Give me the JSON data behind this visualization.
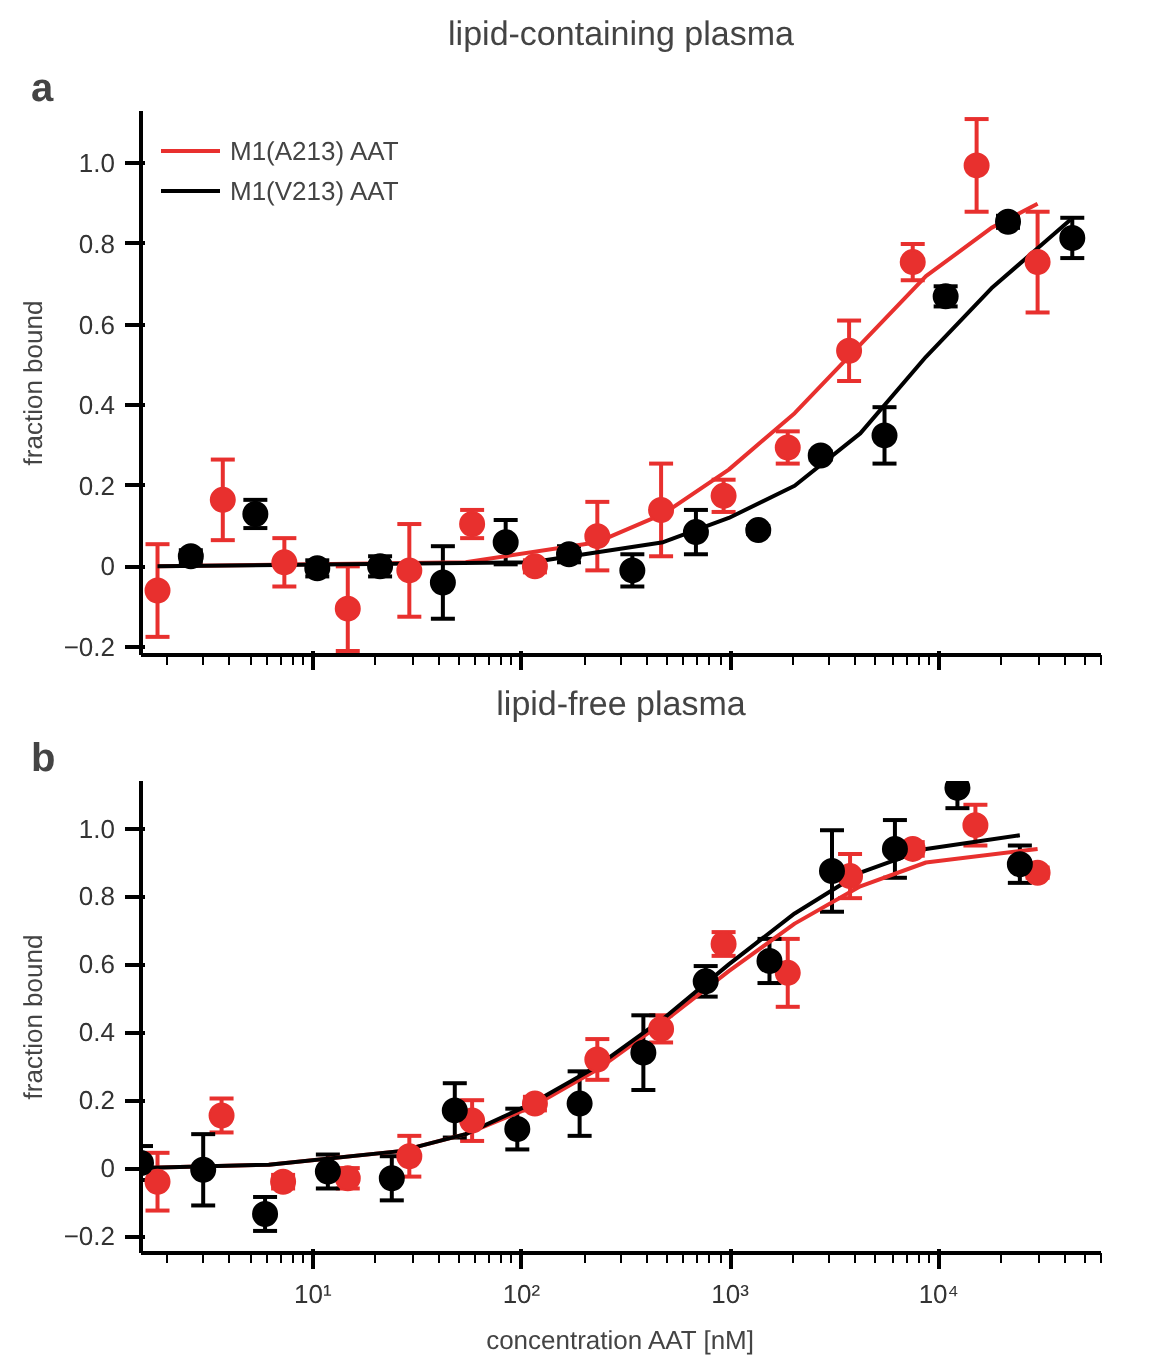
{
  "chart_data": [
    {
      "type": "scatter",
      "title": "lipid-containing plasma",
      "ylabel": "fraction bound",
      "annotations": [
        "a"
      ],
      "log": "x",
      "grid": false,
      "legend": "top left",
      "marker": "circle",
      "tick_labels": "y",
      "xlim": [
        1.5,
        60000
      ],
      "ylim": [
        -0.22,
        1.13
      ],
      "xticks": [
        10,
        100,
        1000,
        10000
      ],
      "yticks": [
        -0.2,
        0,
        0.2,
        0.4,
        0.6,
        0.8,
        {
          "value": 1,
          "label": "1.0"
        }
      ],
      "series": [
        {
          "type": "line",
          "marker": "none",
          "name": "M1(A213) AAT",
          "color": "#e8302e",
          "x": [
            1.8,
            54,
            231,
            478,
            986,
            2040,
            4210,
            8690,
            17900,
            29800
          ],
          "values": [
            0,
            0.01,
            0.06,
            0.13,
            0.24,
            0.38,
            0.55,
            0.72,
            0.84,
            0.9
          ]
        },
        {
          "type": "line",
          "marker": "none",
          "name": "M1(V213) AAT",
          "color": "#000000",
          "x": [
            1.8,
            112,
            478,
            986,
            2040,
            4210,
            8690,
            17900,
            42800
          ],
          "values": [
            0,
            0.01,
            0.06,
            0.12,
            0.2,
            0.33,
            0.52,
            0.69,
            0.86
          ]
        },
        {
          "color": "#e8302e",
          "x": [
            1.8,
            3.7,
            7.3,
            14.7,
            29,
            58,
            116,
            231,
            467,
            931,
            1890,
            3720,
            7510,
            15200,
            29800
          ],
          "values": [
            -0.06,
            0.165,
            0.01,
            -0.105,
            -0.01,
            0.105,
            0,
            0.075,
            0.14,
            0.175,
            0.295,
            0.535,
            0.755,
            0.995,
            0.755
          ],
          "errors": [
            0.115,
            0.1,
            0.06,
            0.105,
            0.115,
            0.035,
            0.015,
            0.085,
            0.115,
            0.04,
            0.04,
            0.075,
            0.045,
            0.115,
            0.125
          ]
        },
        {
          "color": "#000000",
          "x": [
            2.6,
            5.3,
            10.5,
            21,
            42,
            84,
            169,
            340,
            686,
            1365,
            2720,
            5500,
            10800,
            21500,
            43700
          ],
          "values": [
            0.025,
            0.13,
            -0.005,
            0,
            -0.04,
            0.06,
            0.03,
            -0.01,
            0.085,
            0.09,
            0.275,
            0.325,
            0.67,
            0.855,
            0.815
          ],
          "errors": [
            0.015,
            0.035,
            0.02,
            0.025,
            0.09,
            0.055,
            0.02,
            0.04,
            0.055,
            0.01,
            0.01,
            0.07,
            0.025,
            0.015,
            0.05
          ]
        }
      ]
    },
    {
      "type": "scatter",
      "title": "lipid-free plasma",
      "xlabel": "concentration AAT [nM]",
      "ylabel": "fraction bound",
      "annotations": [
        "b"
      ],
      "log": "x",
      "grid": false,
      "marker": "circle",
      "xlim": [
        1.5,
        60000
      ],
      "ylim": [
        -0.25,
        1.14
      ],
      "xticks": [
        {
          "value": 10,
          "label": "10¹"
        },
        {
          "value": 100,
          "label": "10²"
        },
        {
          "value": 1000,
          "label": "10³"
        },
        {
          "value": 10000,
          "label": "10⁴"
        }
      ],
      "yticks": [
        -0.2,
        0,
        0.2,
        0.4,
        0.6,
        0.8,
        {
          "value": 1,
          "label": "1.0"
        }
      ],
      "series": [
        {
          "type": "line",
          "marker": "none",
          "color": "#e8302e",
          "x": [
            1.5,
            6.15,
            26.2,
            54,
            112,
            231,
            478,
            986,
            2040,
            4210,
            8690,
            29800
          ],
          "values": [
            0,
            0.01,
            0.05,
            0.1,
            0.18,
            0.29,
            0.43,
            0.58,
            0.72,
            0.83,
            0.9,
            0.94
          ]
        },
        {
          "type": "line",
          "marker": "none",
          "color": "#000000",
          "x": [
            1.5,
            6.15,
            26.2,
            54,
            112,
            231,
            478,
            986,
            2040,
            4210,
            8690,
            24500
          ],
          "values": [
            0,
            0.01,
            0.05,
            0.1,
            0.19,
            0.3,
            0.44,
            0.6,
            0.75,
            0.87,
            0.94,
            0.98
          ]
        },
        {
          "color": "#e8302e",
          "x": [
            1.8,
            3.65,
            7.2,
            14.7,
            29,
            58,
            116,
            231,
            467,
            931,
            1890,
            3760,
            7510,
            15000,
            29800
          ],
          "values": [
            -0.04,
            0.155,
            -0.04,
            -0.03,
            0.035,
            0.14,
            0.19,
            0.32,
            0.41,
            0.66,
            0.575,
            0.86,
            0.94,
            1.01,
            0.87
          ],
          "errors": [
            0.085,
            0.05,
            0.02,
            0.03,
            0.06,
            0.06,
            0.02,
            0.06,
            0.04,
            0.035,
            0.1,
            0.065,
            0.02,
            0.06,
            0.015
          ]
        },
        {
          "color": "#000000",
          "x": [
            1.5,
            2.98,
            5.9,
            11.8,
            23.9,
            47.9,
            95.5,
            190,
            384,
            764,
            1545,
            3080,
            6170,
            12300,
            24500
          ],
          "values": [
            0.015,
            -0.005,
            -0.135,
            -0.01,
            -0.03,
            0.17,
            0.115,
            0.19,
            0.34,
            0.55,
            0.61,
            0.875,
            0.94,
            1.12,
            0.895
          ],
          "errors": [
            0.05,
            0.105,
            0.05,
            0.05,
            0.065,
            0.08,
            0.06,
            0.095,
            0.11,
            0.045,
            0.065,
            0.12,
            0.085,
            0.06,
            0.055
          ]
        }
      ]
    }
  ]
}
